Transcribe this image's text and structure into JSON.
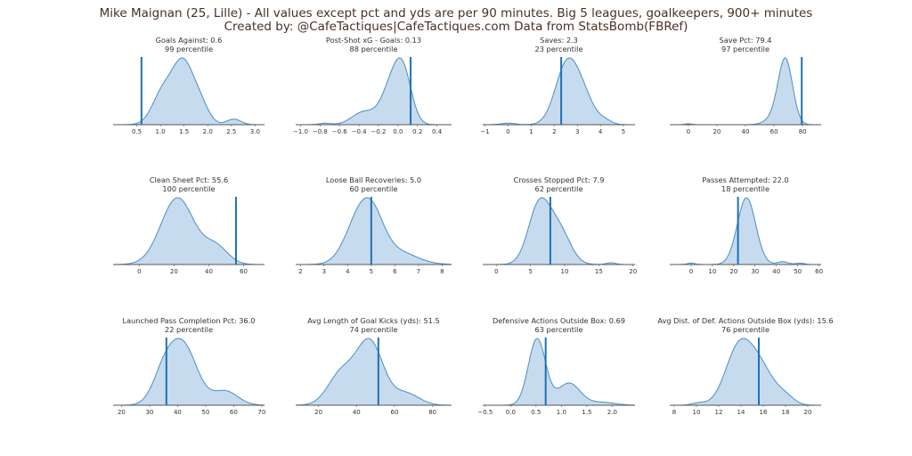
{
  "header": {
    "title_line1": "Mike Maignan (25, Lille) - All values except pct and yds are per 90 minutes. Big 5 leagues, goalkeepers, 900+ minutes",
    "title_line2": "Created by: @CafeTactiques|CafeTactiques.com      Data from StatsBomb(FBRef)"
  },
  "colors": {
    "fill": "#c6dbee",
    "line": "#4a8ec6",
    "marker": "#2171b5",
    "axis": "#555555",
    "text": "#333333",
    "title": "#4a3020"
  },
  "chart_data": [
    {
      "type": "area",
      "title": "Goals Against: 0.6",
      "percentile_label": "99 percentile",
      "player_value": 0.6,
      "percentile": 99,
      "xlim": [
        0.0,
        3.2
      ],
      "ticks": [
        0.5,
        1.0,
        1.5,
        2.0,
        2.5,
        3.0
      ],
      "tick_labels": [
        "0.5",
        "1.0",
        "1.5",
        "2.0",
        "2.5",
        "3.0"
      ],
      "density_components": [
        [
          1.05,
          0.22,
          0.45
        ],
        [
          1.48,
          0.22,
          0.85
        ],
        [
          1.85,
          0.18,
          0.25
        ],
        [
          2.55,
          0.15,
          0.08
        ]
      ]
    },
    {
      "type": "area",
      "title": "Post-Shot xG - Goals: 0.13",
      "percentile_label": "88 percentile",
      "player_value": 0.13,
      "percentile": 88,
      "xlim": [
        -1.05,
        0.55
      ],
      "ticks": [
        -1.0,
        -0.8,
        -0.6,
        -0.4,
        -0.2,
        0.0,
        0.2,
        0.4
      ],
      "tick_labels": [
        "−1.0",
        "−0.8",
        "−0.6",
        "−0.4",
        "−0.2",
        "0.0",
        "0.2",
        "0.4"
      ],
      "density_components": [
        [
          -0.75,
          0.06,
          0.02
        ],
        [
          -0.35,
          0.12,
          0.18
        ],
        [
          -0.08,
          0.1,
          0.45
        ],
        [
          0.05,
          0.09,
          0.7
        ]
      ]
    },
    {
      "type": "area",
      "title": "Saves: 2.3",
      "percentile_label": "23 percentile",
      "player_value": 2.3,
      "percentile": 23,
      "xlim": [
        -1.1,
        5.5
      ],
      "ticks": [
        -1,
        0,
        1,
        2,
        3,
        4,
        5
      ],
      "tick_labels": [
        "−1",
        "0",
        "1",
        "2",
        "3",
        "4",
        "5"
      ],
      "density_components": [
        [
          0.0,
          0.3,
          0.025
        ],
        [
          2.55,
          0.5,
          0.95
        ],
        [
          3.3,
          0.45,
          0.35
        ],
        [
          4.2,
          0.3,
          0.06
        ]
      ]
    },
    {
      "type": "area",
      "title": "Save Pct: 79.4",
      "percentile_label": "97 percentile",
      "player_value": 79.4,
      "percentile": 97,
      "xlim": [
        -13,
        93
      ],
      "ticks": [
        0,
        20,
        40,
        60,
        80
      ],
      "tick_labels": [
        "0",
        "20",
        "40",
        "60",
        "80"
      ],
      "density_components": [
        [
          0,
          2.5,
          0.015
        ],
        [
          68,
          5,
          1.0
        ],
        [
          60,
          6,
          0.1
        ]
      ]
    },
    {
      "type": "area",
      "title": "Clean Sheet Pct: 55.6",
      "percentile_label": "100 percentile",
      "player_value": 55.6,
      "percentile": 100,
      "xlim": [
        -15,
        72
      ],
      "ticks": [
        0,
        20,
        40,
        60
      ],
      "tick_labels": [
        "0",
        "20",
        "40",
        "60"
      ],
      "density_components": [
        [
          22,
          9.5,
          0.95
        ],
        [
          44,
          7,
          0.25
        ]
      ]
    },
    {
      "type": "area",
      "title": "Loose Ball Recoveries: 5.0",
      "percentile_label": "60 percentile",
      "player_value": 5.0,
      "percentile": 60,
      "xlim": [
        1.8,
        8.4
      ],
      "ticks": [
        2,
        3,
        4,
        5,
        6,
        7,
        8
      ],
      "tick_labels": [
        "2",
        "3",
        "4",
        "5",
        "6",
        "7",
        "8"
      ],
      "density_components": [
        [
          4.5,
          0.6,
          0.7
        ],
        [
          5.1,
          0.5,
          0.45
        ],
        [
          6.1,
          0.8,
          0.2
        ]
      ]
    },
    {
      "type": "area",
      "title": "Crosses Stopped Pct: 7.9",
      "percentile_label": "62 percentile",
      "player_value": 7.9,
      "percentile": 62,
      "xlim": [
        -2,
        20.3
      ],
      "ticks": [
        0,
        5,
        10,
        15,
        20
      ],
      "tick_labels": [
        "0",
        "5",
        "10",
        "15",
        "20"
      ],
      "density_components": [
        [
          6.3,
          1.6,
          0.85
        ],
        [
          9.3,
          1.6,
          0.45
        ],
        [
          16.8,
          0.7,
          0.025
        ]
      ]
    },
    {
      "type": "area",
      "title": "Passes Attempted: 22.0",
      "percentile_label": "18 percentile",
      "player_value": 22.0,
      "percentile": 18,
      "xlim": [
        -10,
        61
      ],
      "ticks": [
        0,
        10,
        20,
        30,
        40,
        50,
        60
      ],
      "tick_labels": [
        "0",
        "10",
        "20",
        "30",
        "40",
        "50",
        "60"
      ],
      "density_components": [
        [
          0,
          1.8,
          0.02
        ],
        [
          26,
          4.3,
          0.95
        ],
        [
          43,
          2.5,
          0.04
        ],
        [
          51,
          2,
          0.02
        ]
      ]
    },
    {
      "type": "area",
      "title": "Launched Pass Completion Pct: 36.0",
      "percentile_label": "22 percentile",
      "player_value": 36.0,
      "percentile": 22,
      "xlim": [
        17,
        71
      ],
      "ticks": [
        20,
        30,
        40,
        50,
        60,
        70
      ],
      "tick_labels": [
        "20",
        "30",
        "40",
        "50",
        "60",
        "70"
      ],
      "density_components": [
        [
          35,
          4,
          0.35
        ],
        [
          42,
          5,
          0.75
        ],
        [
          57,
          4.5,
          0.18
        ]
      ]
    },
    {
      "type": "area",
      "title": "Avg Length of Goal Kicks (yds): 51.5",
      "percentile_label": "74 percentile",
      "player_value": 51.5,
      "percentile": 74,
      "xlim": [
        8,
        90
      ],
      "ticks": [
        20,
        40,
        60,
        80
      ],
      "tick_labels": [
        "20",
        "40",
        "60",
        "80"
      ],
      "density_components": [
        [
          32,
          7,
          0.4
        ],
        [
          47,
          7,
          0.8
        ],
        [
          66,
          7,
          0.15
        ]
      ]
    },
    {
      "type": "area",
      "title": "Defensive Actions Outside Box: 0.69",
      "percentile_label": "63 percentile",
      "player_value": 0.69,
      "percentile": 63,
      "xlim": [
        -0.55,
        2.45
      ],
      "ticks": [
        -0.5,
        0.0,
        0.5,
        1.0,
        1.5,
        2.0
      ],
      "tick_labels": [
        "−0.5",
        "0.0",
        "0.5",
        "1.0",
        "1.5",
        "2.0"
      ],
      "density_components": [
        [
          0.52,
          0.17,
          0.9
        ],
        [
          1.15,
          0.22,
          0.3
        ],
        [
          1.8,
          0.25,
          0.04
        ]
      ]
    },
    {
      "type": "area",
      "title": "Avg Dist. of Def. Actions Outside Box (yds): 15.6",
      "percentile_label": "76 percentile",
      "player_value": 15.6,
      "percentile": 76,
      "xlim": [
        7.6,
        21.2
      ],
      "ticks": [
        8,
        10,
        12,
        14,
        16,
        18,
        20
      ],
      "tick_labels": [
        "8",
        "10",
        "12",
        "14",
        "16",
        "18",
        "20"
      ],
      "density_components": [
        [
          10.2,
          0.6,
          0.03
        ],
        [
          13.8,
          1.2,
          0.75
        ],
        [
          15.8,
          1.2,
          0.45
        ],
        [
          18,
          0.8,
          0.1
        ]
      ]
    }
  ]
}
